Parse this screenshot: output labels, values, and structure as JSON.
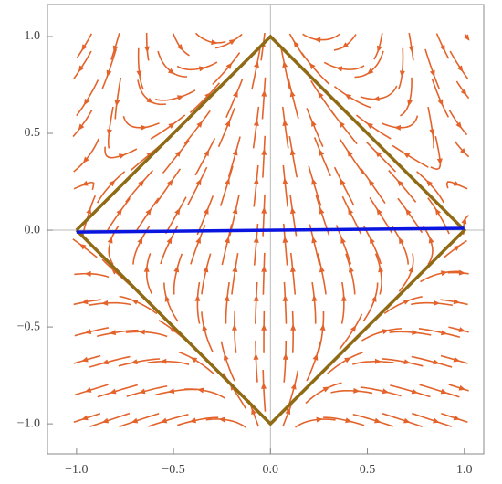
{
  "chart_data": {
    "type": "line",
    "xlim": [
      -1.15,
      1.1
    ],
    "ylim": [
      -1.155,
      1.165
    ],
    "xticks": [
      {
        "value": -1,
        "label": "−1.0"
      },
      {
        "value": -0.5,
        "label": "−0.5"
      },
      {
        "value": 0,
        "label": "0.0"
      },
      0.5,
      {
        "value": 1,
        "label": "1.0"
      }
    ],
    "yticks": [
      {
        "value": -1,
        "label": "−1.0"
      },
      {
        "value": -0.5,
        "label": "−0.5"
      },
      {
        "value": 0,
        "label": "0.0"
      },
      0.5,
      {
        "value": 1,
        "label": "1.0"
      }
    ],
    "stream_color": "#e3632b",
    "series": [
      {
        "color": "#8f6b16",
        "x": [
          -1,
          0,
          1,
          0,
          -1
        ],
        "values": [
          0,
          1,
          0,
          -1,
          0
        ]
      },
      {
        "color": "#0a16e0",
        "x": [
          -1,
          1
        ],
        "values": [
          -0.01,
          0.01
        ]
      }
    ]
  }
}
